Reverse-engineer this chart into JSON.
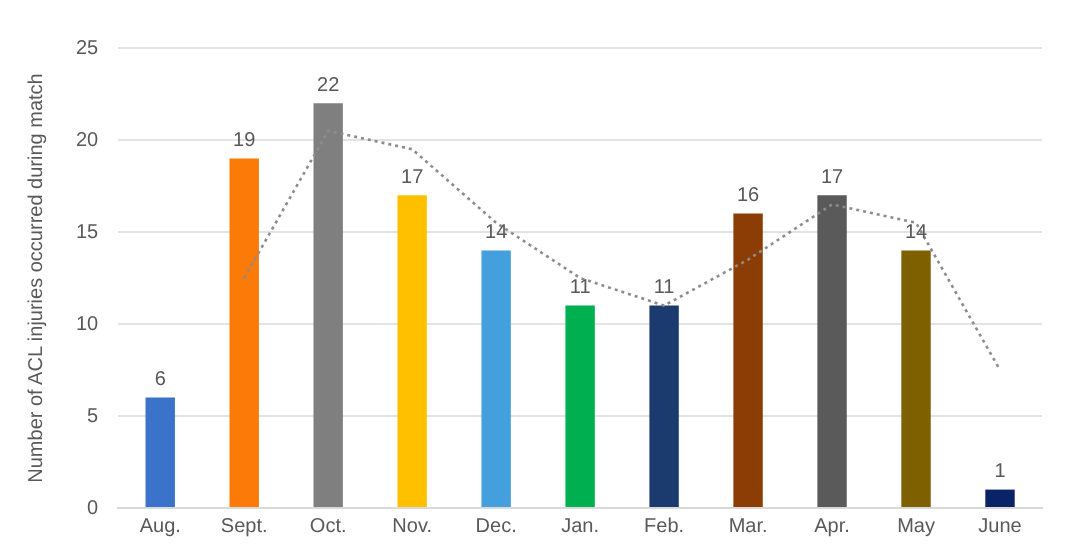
{
  "chart_data": {
    "type": "bar",
    "ylabel": "Number of ACL injuries occurred during match",
    "categories": [
      "Aug.",
      "Sept.",
      "Oct.",
      "Nov.",
      "Dec.",
      "Jan.",
      "Feb.",
      "Mar.",
      "Apr.",
      "May",
      "June"
    ],
    "series": [
      {
        "values": [
          6,
          19,
          22,
          17,
          14,
          11,
          11,
          16,
          17,
          14,
          1
        ],
        "colors": [
          "#3a73c9",
          "#fb7a08",
          "#7f7f7f",
          "#ffc000",
          "#44a0dc",
          "#00b050",
          "#1b3a6e",
          "#8b3d05",
          "#5a5a5a",
          "#7f6000",
          "#0a2266"
        ],
        "value_labels": [
          "6",
          "19",
          "22",
          "17",
          "14",
          "11",
          "11",
          "16",
          "17",
          "14",
          "1"
        ]
      },
      {
        "type": "line",
        "color": "#8c8c8c",
        "line_style": "dotted",
        "marker": "none",
        "values": [
          null,
          12.5,
          20.5,
          19.5,
          15.5,
          12.5,
          11,
          13.5,
          16.5,
          15.5,
          7.5
        ]
      }
    ],
    "ylim": [
      0,
      25
    ],
    "yticks": [
      0,
      5,
      10,
      15,
      20,
      25
    ],
    "grid": "y"
  }
}
